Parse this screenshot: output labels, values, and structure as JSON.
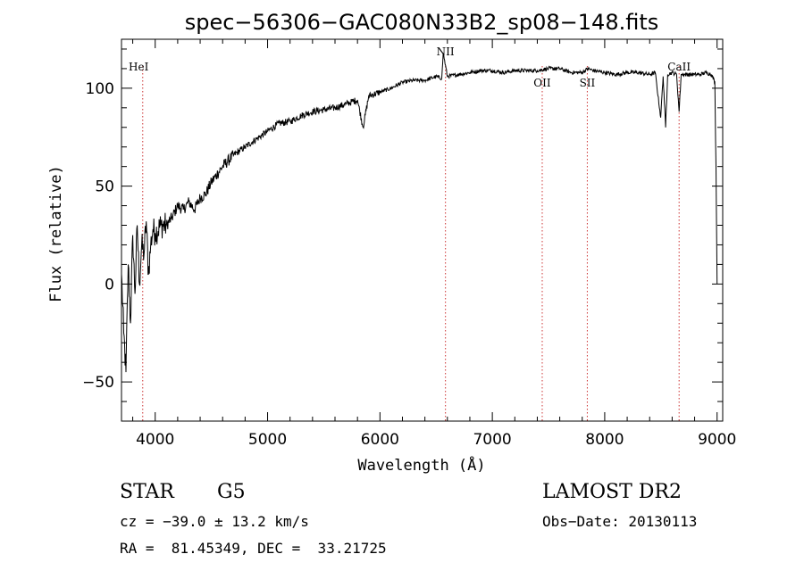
{
  "chart_data": {
    "type": "line",
    "title": "spec−56306−GAC080N33B2_sp08−148.fits",
    "xlabel": "Wavelength (Å)",
    "ylabel": "Flux (relative)",
    "xlim": [
      3700,
      9050
    ],
    "ylim": [
      -70,
      125
    ],
    "xticks": [
      4000,
      5000,
      6000,
      7000,
      8000,
      9000
    ],
    "yticks": [
      -50,
      0,
      50,
      100
    ],
    "ytick_labels": [
      "−50",
      "0",
      "50",
      "100"
    ],
    "series": [
      {
        "x": [
          3700,
          3720,
          3740,
          3760,
          3780,
          3800,
          3820,
          3840,
          3860,
          3880,
          3900,
          3920,
          3940,
          3960,
          3980,
          4000,
          4050,
          4100,
          4150,
          4200,
          4250,
          4300,
          4350,
          4400,
          4450,
          4500,
          4550,
          4600,
          4700,
          4800,
          4900,
          5000,
          5100,
          5200,
          5300,
          5400,
          5500,
          5600,
          5700,
          5800,
          5850,
          5900,
          6000,
          6100,
          6200,
          6300,
          6400,
          6500,
          6550,
          6563,
          6600,
          6700,
          6800,
          6900,
          7000,
          7100,
          7200,
          7300,
          7400,
          7500,
          7600,
          7700,
          7800,
          7850,
          7900,
          8000,
          8100,
          8200,
          8300,
          8400,
          8450,
          8498,
          8520,
          8542,
          8560,
          8600,
          8640,
          8662,
          8680,
          8700,
          8800,
          8850,
          8900,
          8950,
          8980,
          8990,
          9000
        ],
        "y": [
          5,
          -25,
          -45,
          10,
          -20,
          25,
          -5,
          30,
          0,
          20,
          15,
          32,
          5,
          20,
          28,
          26,
          30,
          30,
          34,
          40,
          38,
          42,
          38,
          44,
          46,
          52,
          56,
          60,
          66,
          70,
          74,
          78,
          82,
          83,
          86,
          88,
          89,
          90,
          92,
          94,
          80,
          96,
          98,
          100,
          103,
          104,
          104,
          106,
          105,
          118,
          106,
          107,
          108,
          109,
          109,
          108,
          109,
          109,
          109,
          110,
          110,
          108,
          108,
          110,
          109,
          108,
          107,
          108,
          108,
          107,
          108,
          85,
          106,
          80,
          107,
          108,
          107,
          88,
          107,
          107,
          107,
          107,
          108,
          107,
          103,
          60,
          0
        ]
      }
    ],
    "lines": [
      {
        "label": "HeI",
        "x": 3889
      },
      {
        "label": "NII",
        "x": 6583
      },
      {
        "label": "OII",
        "x": 7444
      },
      {
        "label": "SII",
        "x": 7845
      },
      {
        "label": "CaII",
        "x": 8662
      }
    ]
  },
  "info": {
    "class": "STAR",
    "subclass": "G5",
    "survey": "LAMOST DR2",
    "cz": "cz = −39.0 ± 13.2 km/s",
    "obs_date": "Obs−Date: 20130113",
    "radec": "RA =  81.45349, DEC =  33.21725"
  },
  "colors": {
    "axis": "#000000",
    "line": "#000000",
    "marker": "#cc3333"
  }
}
